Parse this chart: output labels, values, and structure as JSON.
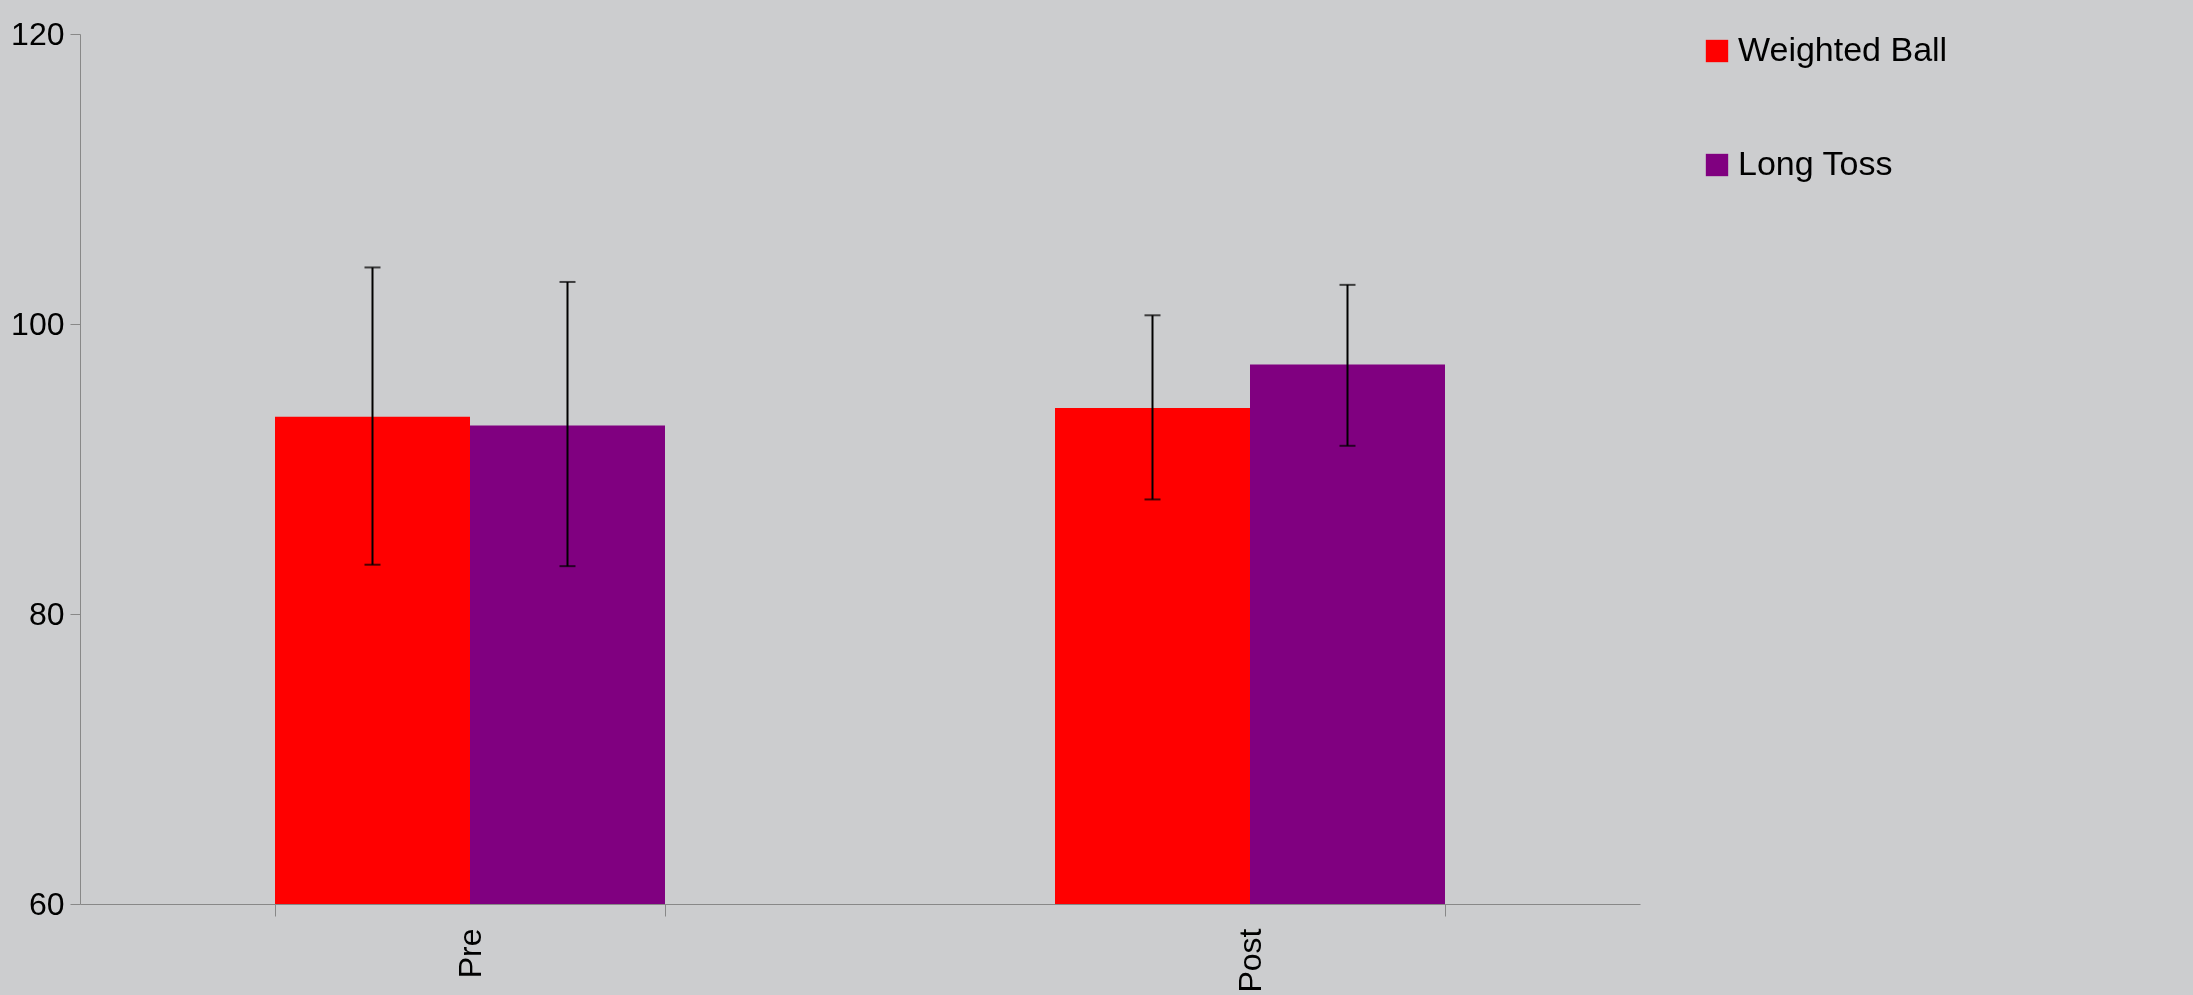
{
  "chart_data": {
    "type": "bar",
    "categories": [
      "Pre",
      "Post"
    ],
    "series": [
      {
        "name": "Weighted Ball",
        "color": "#ff0000",
        "values": [
          93.6,
          94.2
        ],
        "errors": [
          [
            83.4,
            103.9
          ],
          [
            87.9,
            100.6
          ]
        ]
      },
      {
        "name": "Long Toss",
        "color": "#800080",
        "values": [
          93.0,
          97.2
        ],
        "errors": [
          [
            83.3,
            102.9
          ],
          [
            91.6,
            102.7
          ]
        ]
      }
    ],
    "ylim": [
      60,
      120
    ],
    "yticks": [
      60,
      80,
      100,
      120
    ],
    "grid": false,
    "legend": "right"
  }
}
